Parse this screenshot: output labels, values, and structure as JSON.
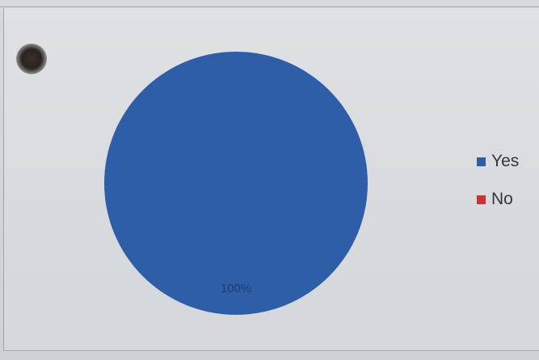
{
  "colors": {
    "yes": "#2e5ea8",
    "no": "#c4343b"
  },
  "chart_data": {
    "type": "pie",
    "categories": [
      "Yes",
      "No"
    ],
    "values": [
      100,
      0
    ],
    "data_labels": [
      "100%"
    ],
    "legend_position": "right"
  },
  "legend": {
    "items": [
      {
        "label": "Yes",
        "color": "#2e5ea8"
      },
      {
        "label": "No",
        "color": "#c4343b"
      }
    ]
  }
}
